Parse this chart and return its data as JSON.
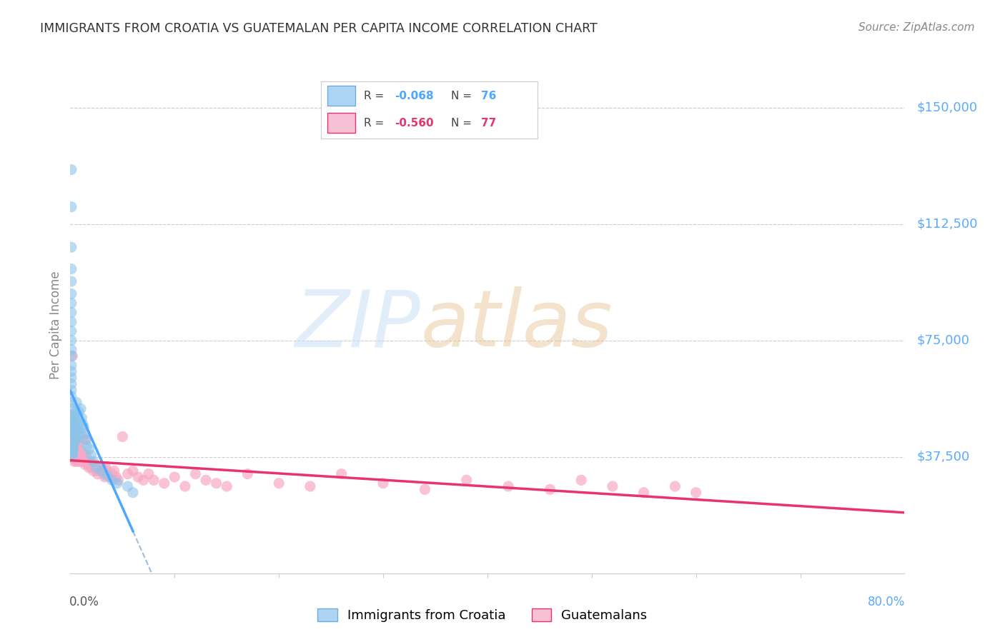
{
  "title": "IMMIGRANTS FROM CROATIA VS GUATEMALAN PER CAPITA INCOME CORRELATION CHART",
  "source": "Source: ZipAtlas.com",
  "ylabel": "Per Capita Income",
  "ytick_labels": [
    "$37,500",
    "$75,000",
    "$112,500",
    "$150,000"
  ],
  "ytick_values": [
    37500,
    75000,
    112500,
    150000
  ],
  "xmin": 0.0,
  "xmax": 0.8,
  "ymin": 0,
  "ymax": 160000,
  "blue_trend_xmax": 0.06,
  "series": [
    {
      "name": "Immigrants from Croatia",
      "R": -0.068,
      "N": 76,
      "color": "#8cc4e8",
      "trend_color": "#3a7fc1",
      "x": [
        0.001,
        0.001,
        0.001,
        0.001,
        0.001,
        0.001,
        0.001,
        0.001,
        0.001,
        0.001,
        0.001,
        0.001,
        0.001,
        0.001,
        0.001,
        0.001,
        0.001,
        0.001,
        0.001,
        0.001,
        0.001,
        0.001,
        0.001,
        0.001,
        0.001,
        0.001,
        0.001,
        0.001,
        0.001,
        0.001,
        0.002,
        0.002,
        0.002,
        0.002,
        0.002,
        0.002,
        0.002,
        0.002,
        0.002,
        0.002,
        0.003,
        0.003,
        0.003,
        0.003,
        0.004,
        0.004,
        0.004,
        0.004,
        0.005,
        0.005,
        0.005,
        0.005,
        0.006,
        0.006,
        0.007,
        0.007,
        0.008,
        0.008,
        0.009,
        0.01,
        0.011,
        0.012,
        0.013,
        0.014,
        0.015,
        0.016,
        0.018,
        0.02,
        0.022,
        0.025,
        0.03,
        0.035,
        0.04,
        0.045,
        0.055,
        0.06
      ],
      "y": [
        130000,
        118000,
        105000,
        98000,
        94000,
        90000,
        87000,
        84000,
        81000,
        78000,
        75000,
        72000,
        70000,
        67000,
        65000,
        63000,
        61000,
        59000,
        57000,
        55000,
        53000,
        51000,
        50000,
        48000,
        47000,
        46000,
        45000,
        44000,
        43000,
        43000,
        42000,
        42000,
        41500,
        41000,
        40500,
        40000,
        39500,
        39000,
        38500,
        38000,
        47000,
        44000,
        42000,
        40000,
        51000,
        48000,
        45000,
        43000,
        52000,
        49000,
        46000,
        43000,
        55000,
        50000,
        46000,
        43000,
        52000,
        48000,
        45000,
        53000,
        50000,
        48000,
        47000,
        45000,
        43000,
        41000,
        40000,
        38000,
        36000,
        34000,
        33000,
        31500,
        30000,
        29000,
        28000,
        26000
      ]
    },
    {
      "name": "Guatemalans",
      "R": -0.56,
      "N": 77,
      "color": "#f7a8c4",
      "trend_color": "#e8346a",
      "x": [
        0.001,
        0.001,
        0.002,
        0.003,
        0.003,
        0.004,
        0.004,
        0.005,
        0.005,
        0.006,
        0.007,
        0.007,
        0.008,
        0.008,
        0.009,
        0.009,
        0.01,
        0.01,
        0.011,
        0.012,
        0.012,
        0.013,
        0.014,
        0.015,
        0.015,
        0.016,
        0.017,
        0.018,
        0.019,
        0.02,
        0.021,
        0.022,
        0.023,
        0.024,
        0.025,
        0.026,
        0.027,
        0.028,
        0.03,
        0.031,
        0.032,
        0.033,
        0.034,
        0.035,
        0.038,
        0.04,
        0.042,
        0.044,
        0.046,
        0.05,
        0.055,
        0.06,
        0.065,
        0.07,
        0.075,
        0.08,
        0.09,
        0.1,
        0.11,
        0.12,
        0.13,
        0.14,
        0.15,
        0.17,
        0.2,
        0.23,
        0.26,
        0.3,
        0.34,
        0.38,
        0.42,
        0.46,
        0.49,
        0.52,
        0.55,
        0.58,
        0.6
      ],
      "y": [
        40000,
        38000,
        70000,
        42000,
        37000,
        44000,
        36000,
        43000,
        38000,
        36000,
        40000,
        38000,
        42000,
        37000,
        40000,
        36000,
        38000,
        37000,
        36000,
        44000,
        38000,
        36000,
        35000,
        43000,
        38000,
        36000,
        35000,
        34000,
        36000,
        35000,
        34000,
        33000,
        35000,
        34000,
        33000,
        32000,
        34000,
        33000,
        34000,
        33000,
        32000,
        31000,
        34000,
        33000,
        31000,
        32000,
        33000,
        31000,
        30000,
        44000,
        32000,
        33000,
        31000,
        30000,
        32000,
        30000,
        29000,
        31000,
        28000,
        32000,
        30000,
        29000,
        28000,
        32000,
        29000,
        28000,
        32000,
        29000,
        27000,
        30000,
        28000,
        27000,
        30000,
        28000,
        26000,
        28000,
        26000
      ]
    }
  ],
  "blue_color": "#4da6ff",
  "pink_color": "#e8346a",
  "dashed_color": "#a0bcdb",
  "title_color": "#333333",
  "source_color": "#888888",
  "ylabel_color": "#888888",
  "ytick_color": "#5aaaff",
  "xtick_color_left": "#555555",
  "xtick_color_right": "#5aaaff",
  "grid_color": "#cccccc",
  "bg_color": "#ffffff"
}
